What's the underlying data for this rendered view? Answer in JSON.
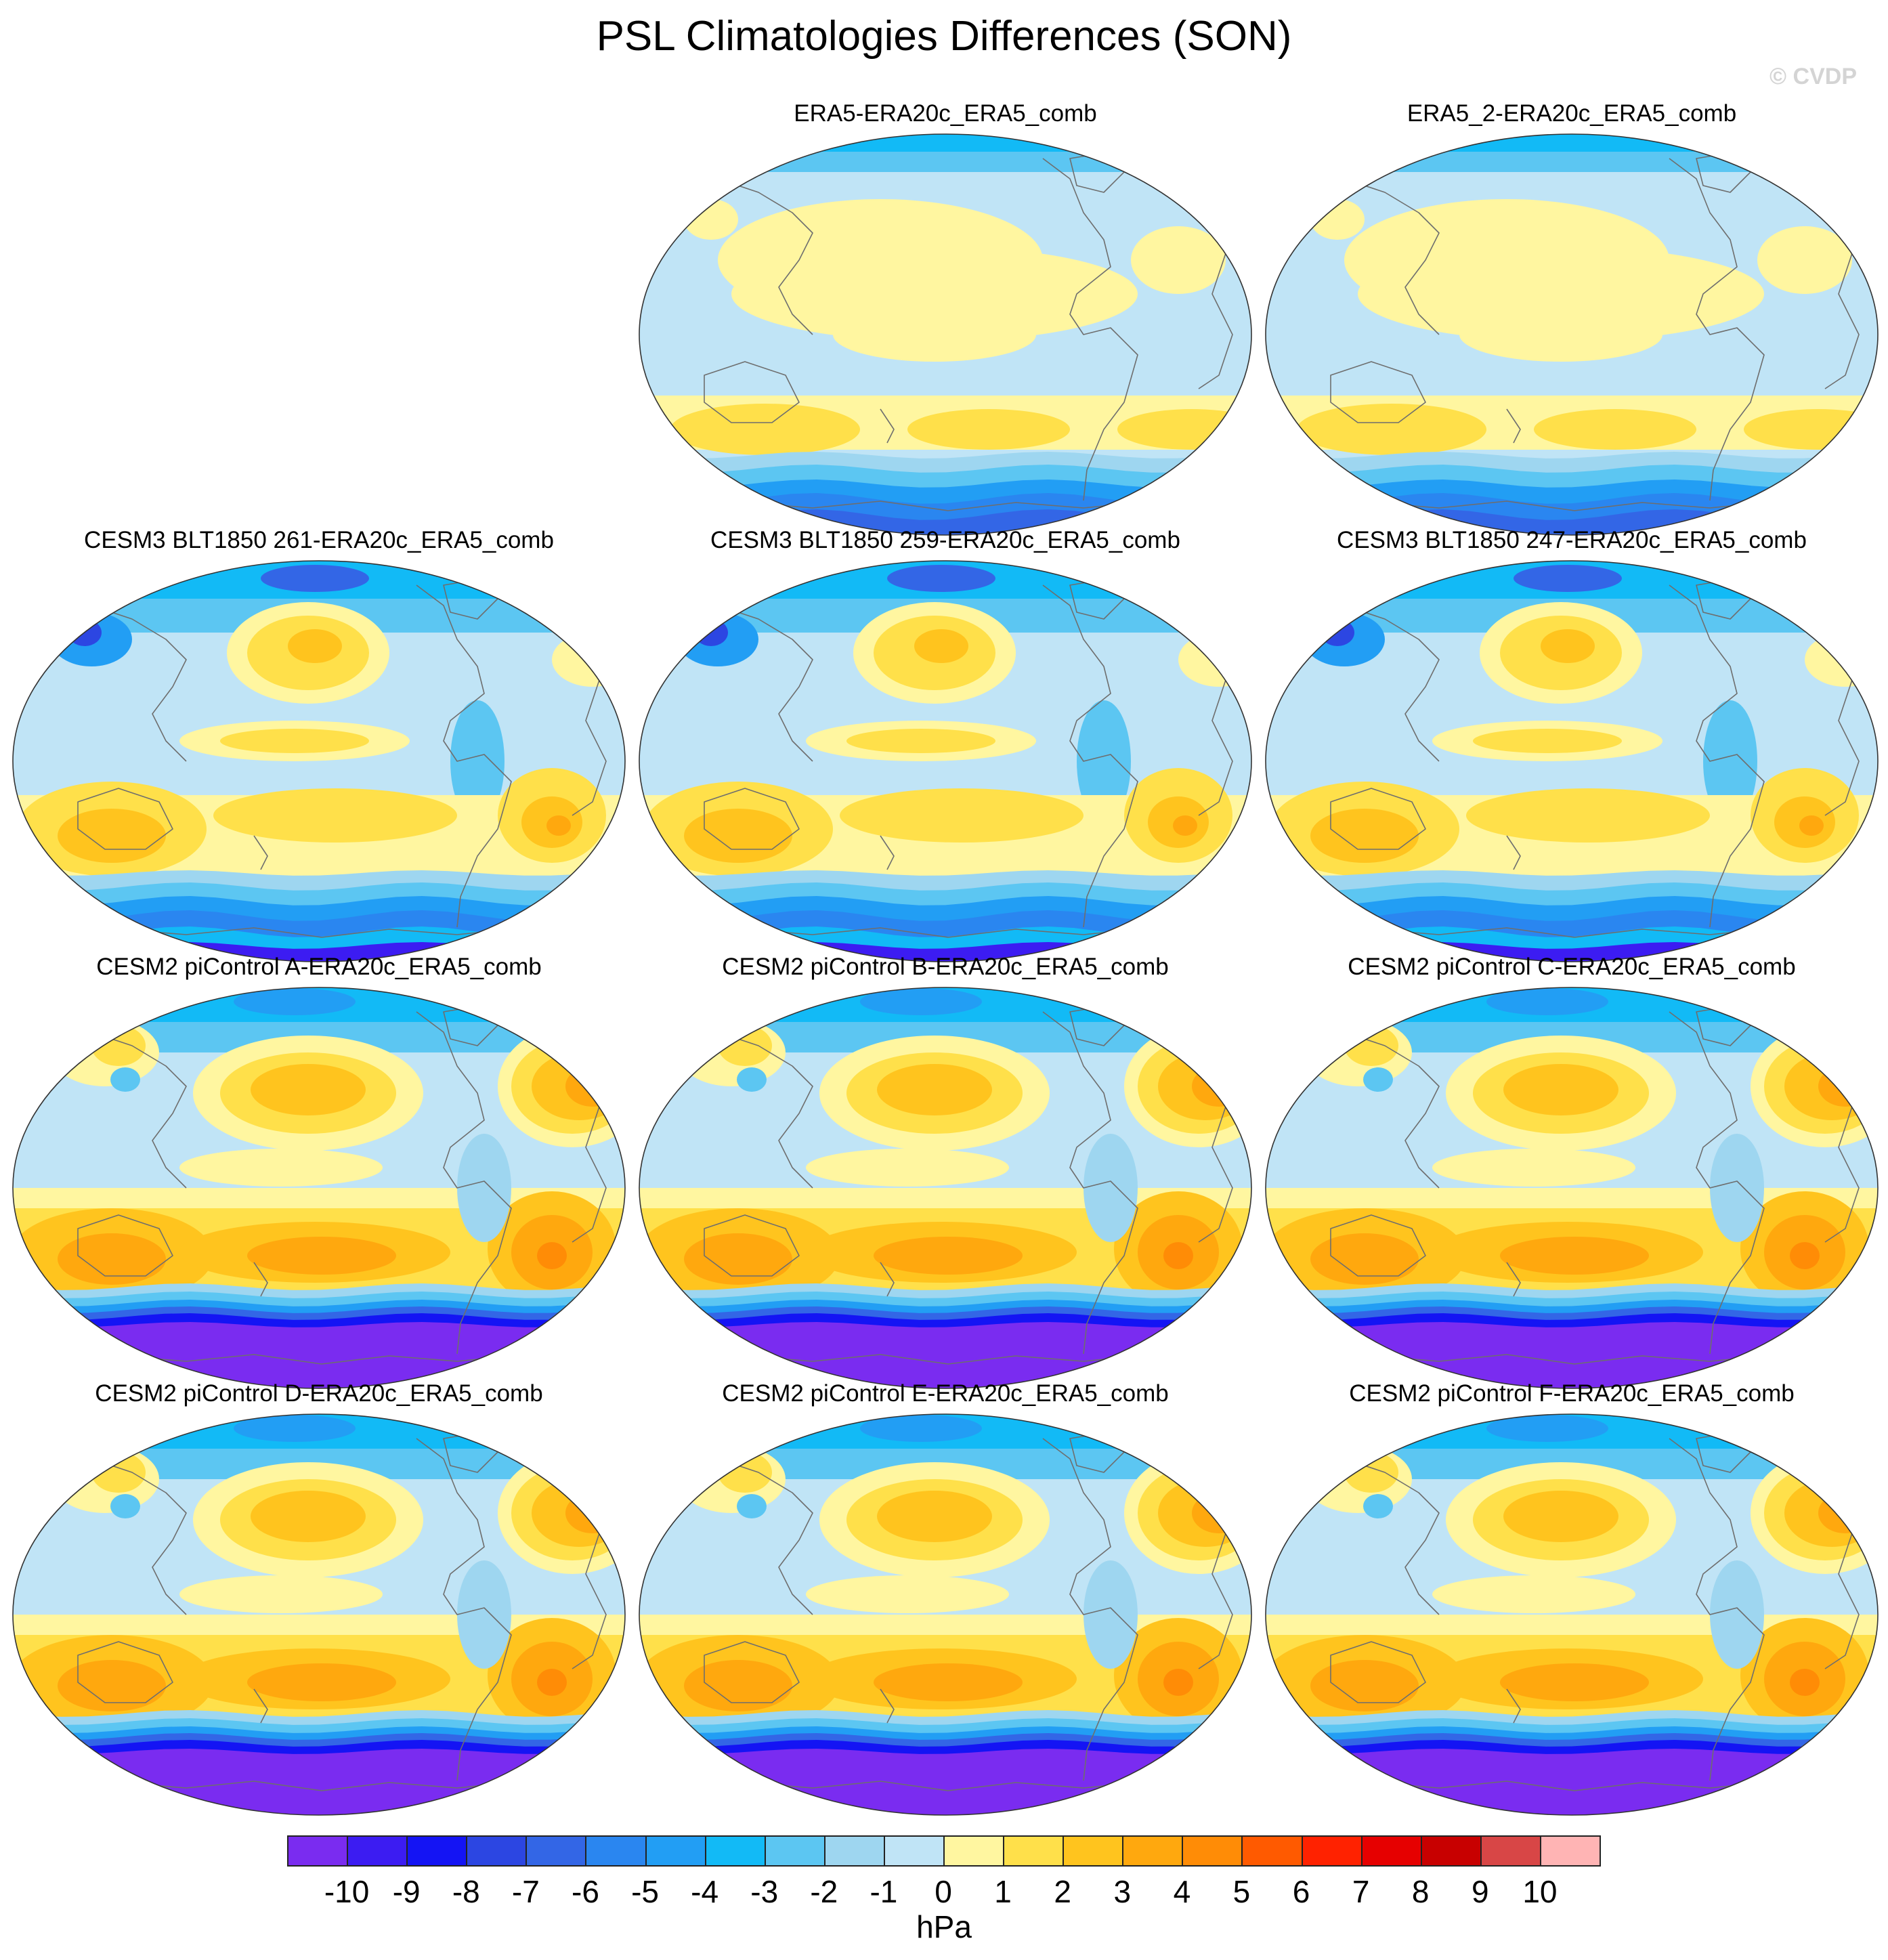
{
  "title": "PSL Climatologies Differences (SON)",
  "watermark": "© CVDP",
  "units": "hPa",
  "colorbar": {
    "ticks": [
      "-10",
      "-9",
      "-8",
      "-7",
      "-6",
      "-5",
      "-4",
      "-3",
      "-2",
      "-1",
      "0",
      "1",
      "2",
      "3",
      "4",
      "5",
      "6",
      "7",
      "8",
      "9",
      "10"
    ],
    "colors": [
      "#7a2cf0",
      "#3c1cf2",
      "#1414f4",
      "#2c46e2",
      "#3366e6",
      "#2a86f0",
      "#229ef4",
      "#12baf6",
      "#5cc6f2",
      "#9ed6f0",
      "#c0e4f6",
      "#fff6a0",
      "#ffe04a",
      "#ffc41e",
      "#ffa80e",
      "#ff8c06",
      "#ff5a00",
      "#ff2200",
      "#e60000",
      "#c80000",
      "#d84646",
      "#ffb4b4"
    ]
  },
  "panels": [
    {
      "title": "ERA5-ERA20c_ERA5_comb",
      "style": "obs"
    },
    {
      "title": "ERA5_2-ERA20c_ERA5_comb",
      "style": "obs"
    },
    {
      "title": "CESM3 BLT1850 261-ERA20c_ERA5_comb",
      "style": "cesm3"
    },
    {
      "title": "CESM3 BLT1850 259-ERA20c_ERA5_comb",
      "style": "cesm3"
    },
    {
      "title": "CESM3 BLT1850 247-ERA20c_ERA5_comb",
      "style": "cesm3"
    },
    {
      "title": "CESM2 piControl A-ERA20c_ERA5_comb",
      "style": "cesm2"
    },
    {
      "title": "CESM2 piControl B-ERA20c_ERA5_comb",
      "style": "cesm2"
    },
    {
      "title": "CESM2 piControl C-ERA20c_ERA5_comb",
      "style": "cesm2"
    },
    {
      "title": "CESM2 piControl D-ERA20c_ERA5_comb",
      "style": "cesm2"
    },
    {
      "title": "CESM2 piControl E-ERA20c_ERA5_comb",
      "style": "cesm2"
    },
    {
      "title": "CESM2 piControl F-ERA20c_ERA5_comb",
      "style": "cesm2"
    }
  ]
}
